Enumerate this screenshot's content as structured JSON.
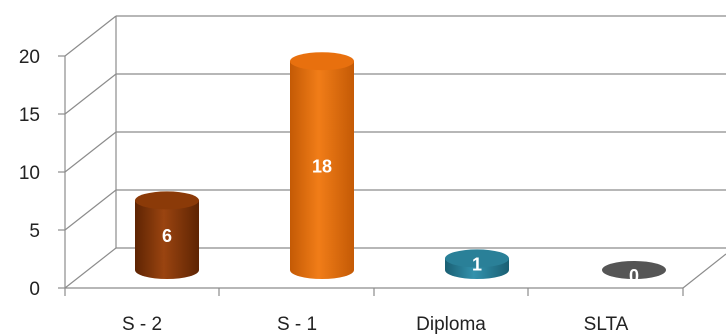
{
  "chart_data": {
    "type": "bar",
    "style": "3d-cylinder",
    "categories": [
      "S - 2",
      "S - 1",
      "Diploma",
      "SLTA"
    ],
    "values": [
      6,
      18,
      1,
      0
    ],
    "data_labels": [
      "6",
      "18",
      "1",
      "0"
    ],
    "ylim": [
      0,
      20
    ],
    "yticks": [
      "0",
      "5",
      "10",
      "15",
      "20"
    ],
    "grid": true,
    "legend": "none",
    "colors": {
      "S - 2": "#8B3A08",
      "S - 1": "#E8700E",
      "Diploma": "#2A8098",
      "SLTA": "#555555",
      "grid": "#8C8C8C"
    }
  }
}
